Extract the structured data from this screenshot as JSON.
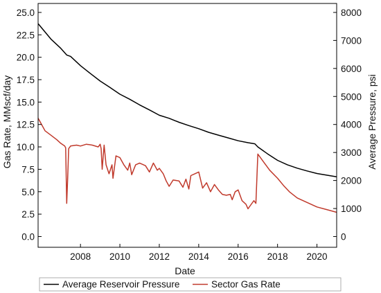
{
  "chart_data": {
    "type": "line",
    "xlabel": "Date",
    "ylabel_left": "Gas Rate, MMscf/day",
    "ylabel_right": "Average Pressure, psi",
    "x_range": [
      2005.85,
      2021.0
    ],
    "x_ticks": [
      "2008",
      "2010",
      "2012",
      "2014",
      "2016",
      "2018",
      "2020"
    ],
    "ylim_left": [
      -1.2,
      26.0
    ],
    "ylim_right": [
      -384,
      8320
    ],
    "y_ticks_left": [
      "0.0",
      "2.5",
      "5.0",
      "7.5",
      "10.0",
      "12.5",
      "15.0",
      "17.5",
      "20.0",
      "22.5",
      "25.0"
    ],
    "y_ticks_right": [
      "0",
      "1000",
      "2000",
      "3000",
      "4000",
      "5000",
      "6000",
      "7000",
      "8000"
    ],
    "grid": false,
    "legend_position": "bottom",
    "colors": {
      "pressure": "#000000",
      "gas_rate": "#c0392b"
    },
    "series": [
      {
        "name": "Average Reservoir Pressure",
        "axis": "right",
        "x": [
          2005.85,
          2006.5,
          2007.0,
          2007.3,
          2007.5,
          2008.0,
          2008.5,
          2009.0,
          2009.5,
          2010.0,
          2010.5,
          2011.0,
          2011.5,
          2012.0,
          2012.5,
          2013.0,
          2013.5,
          2014.0,
          2014.5,
          2015.0,
          2015.5,
          2016.0,
          2016.5,
          2016.85,
          2017.0,
          2017.5,
          2018.0,
          2018.5,
          2019.0,
          2019.5,
          2020.0,
          2020.5,
          2021.0
        ],
        "values": [
          7600,
          7050,
          6720,
          6480,
          6430,
          6100,
          5820,
          5550,
          5320,
          5080,
          4900,
          4700,
          4520,
          4330,
          4220,
          4080,
          3960,
          3850,
          3720,
          3620,
          3520,
          3420,
          3350,
          3310,
          3200,
          2950,
          2720,
          2560,
          2440,
          2340,
          2250,
          2190,
          2130
        ]
      },
      {
        "name": "Sector Gas Rate",
        "axis": "left",
        "x": [
          2005.85,
          2006.0,
          2006.2,
          2006.5,
          2006.8,
          2007.0,
          2007.2,
          2007.25,
          2007.3,
          2007.35,
          2007.4,
          2007.5,
          2007.8,
          2008.0,
          2008.3,
          2008.6,
          2008.9,
          2009.0,
          2009.05,
          2009.1,
          2009.2,
          2009.3,
          2009.45,
          2009.6,
          2009.65,
          2009.8,
          2010.0,
          2010.2,
          2010.4,
          2010.5,
          2010.6,
          2010.8,
          2011.0,
          2011.3,
          2011.5,
          2011.7,
          2011.9,
          2012.0,
          2012.2,
          2012.35,
          2012.5,
          2012.7,
          2013.0,
          2013.2,
          2013.35,
          2013.5,
          2013.6,
          2013.8,
          2014.0,
          2014.2,
          2014.4,
          2014.6,
          2014.8,
          2015.0,
          2015.2,
          2015.4,
          2015.6,
          2015.7,
          2015.85,
          2016.0,
          2016.2,
          2016.4,
          2016.5,
          2016.6,
          2016.8,
          2016.9,
          2017.0,
          2017.3,
          2017.6,
          2018.0,
          2018.3,
          2018.6,
          2019.0,
          2019.5,
          2020.0,
          2020.5,
          2021.0
        ],
        "values": [
          13.2,
          12.6,
          11.8,
          11.3,
          10.8,
          10.4,
          10.1,
          9.9,
          3.7,
          6.5,
          9.8,
          10.1,
          10.2,
          10.1,
          10.3,
          10.2,
          10.0,
          10.3,
          9.8,
          7.5,
          10.2,
          8.0,
          7.0,
          8.0,
          6.5,
          9.0,
          8.8,
          8.0,
          7.4,
          8.2,
          6.9,
          8.0,
          8.2,
          7.9,
          7.2,
          8.2,
          7.4,
          7.6,
          7.0,
          6.2,
          5.6,
          6.3,
          6.2,
          5.5,
          6.4,
          5.3,
          6.8,
          7.0,
          7.2,
          5.4,
          6.0,
          5.0,
          5.8,
          5.2,
          4.7,
          4.6,
          4.7,
          4.1,
          5.0,
          5.2,
          4.0,
          3.6,
          3.1,
          3.4,
          4.0,
          3.7,
          9.2,
          8.3,
          7.4,
          6.5,
          5.7,
          5.0,
          4.3,
          3.8,
          3.3,
          3.0,
          2.7
        ]
      }
    ]
  }
}
